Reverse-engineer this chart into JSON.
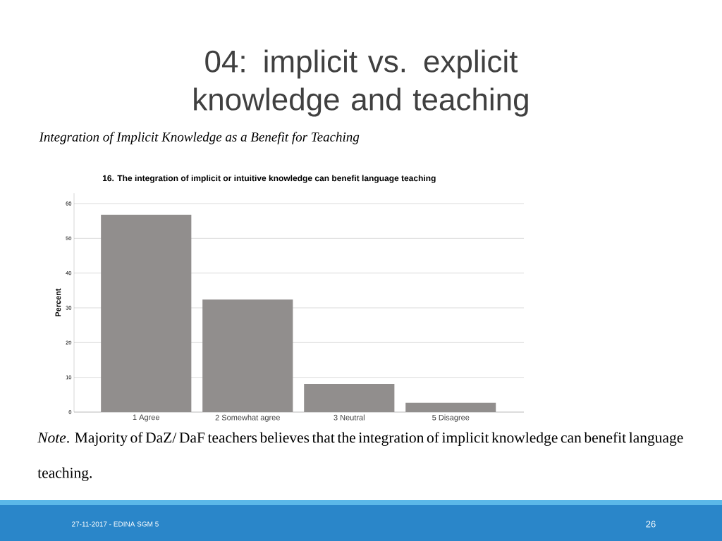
{
  "chart_data": {
    "type": "bar",
    "title": "04: implicit vs. explicit knowledge and teaching",
    "subtitle": "Integration of Implicit Knowledge as a Benefit for Teaching",
    "annotations": [
      "16. The integration of implicit or intuitive knowledge can benefit language teaching",
      "*Note*. Majority of DaZ/ DaF teachers believes that the integration of implicit knowledge can benefit language teaching.",
      "27-11-2017 - EDINA SGM 5",
      "26"
    ],
    "ylabel": "Percent",
    "categories": [
      "1 Agree",
      "2 Somewhat agree",
      "3 Neutral",
      "5 Disagree"
    ],
    "values": [
      56.8,
      32.4,
      8.1,
      2.7
    ],
    "color": "#918e8d",
    "ylim": [
      0,
      63
    ],
    "yticks": [
      0,
      10,
      20,
      30,
      40,
      50,
      60
    ],
    "grid": "y"
  }
}
